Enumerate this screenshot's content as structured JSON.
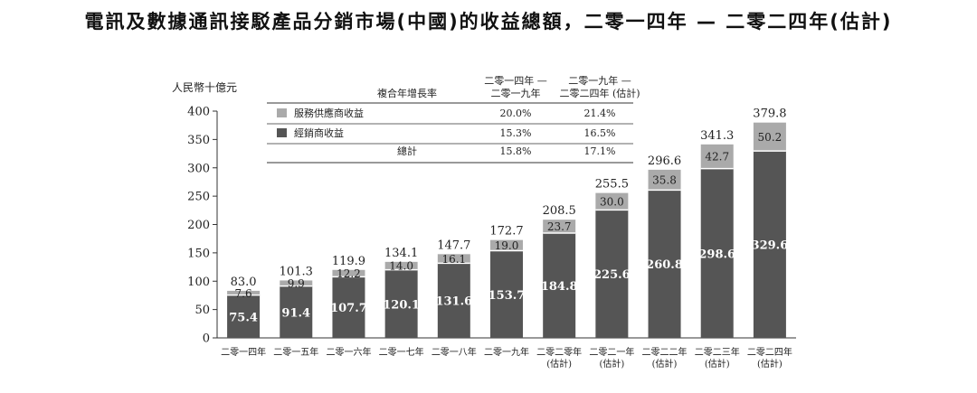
{
  "title": "電訊及數據通訊接駁產品分銷市場(中國)的收益總額，二零一四年 — 二零二四年(估計)",
  "chart_data": {
    "type": "bar",
    "stacked": true,
    "ylabel": "人民幣十億元",
    "ylim": [
      0,
      400
    ],
    "yticks": [
      0,
      50,
      100,
      150,
      200,
      250,
      300,
      350,
      400
    ],
    "categories": [
      [
        "二零一四年"
      ],
      [
        "二零一五年"
      ],
      [
        "二零一六年"
      ],
      [
        "二零一七年"
      ],
      [
        "二零一八年"
      ],
      [
        "二零一九年"
      ],
      [
        "二零二零年",
        "(估計)"
      ],
      [
        "二零二一年",
        "(估計)"
      ],
      [
        "二零二二年",
        "(估計)"
      ],
      [
        "二零二三年",
        "(估計)"
      ],
      [
        "二零二四年",
        "(估計)"
      ]
    ],
    "series": [
      {
        "name": "經銷商收益",
        "color": "#555555",
        "values": [
          75.4,
          91.4,
          107.7,
          120.1,
          131.6,
          153.7,
          184.8,
          225.6,
          260.8,
          298.6,
          329.6
        ]
      },
      {
        "name": "服務供應商收益",
        "color": "#aaaaaa",
        "values": [
          7.6,
          9.9,
          12.2,
          14.0,
          16.1,
          19.0,
          23.7,
          30.0,
          35.8,
          42.7,
          50.2
        ]
      }
    ],
    "totals": [
      "83.0",
      "101.3",
      "119.9",
      "134.1",
      "147.7",
      "172.7",
      "208.5",
      "255.5",
      "296.6",
      "341.3",
      "379.8"
    ],
    "series_labels": [
      [
        "75.4",
        "91.4",
        "107.7",
        "120.1",
        "131.6",
        "153.7",
        "184.8",
        "225.6",
        "260.8",
        "298.6",
        "329.6"
      ],
      [
        "7.6",
        "9.9",
        "12.2",
        "14.0",
        "16.1",
        "19.0",
        "23.7",
        "30.0",
        "35.8",
        "42.7",
        "50.2"
      ]
    ],
    "cagr_table": {
      "header_label": "複合年增長率",
      "columns": [
        [
          "二零一四年 —",
          "二零一九年"
        ],
        [
          "二零一九年 —",
          "二零二四年 (估計)"
        ]
      ],
      "rows": [
        {
          "label": "服務供應商收益",
          "color": "#aaaaaa",
          "values": [
            "20.0%",
            "21.4%"
          ]
        },
        {
          "label": "經銷商收益",
          "color": "#555555",
          "values": [
            "15.3%",
            "16.5%"
          ]
        },
        {
          "label": "總計",
          "color": "",
          "values": [
            "15.8%",
            "17.1%"
          ]
        }
      ]
    },
    "grid": false,
    "legend_position": "top-left"
  }
}
